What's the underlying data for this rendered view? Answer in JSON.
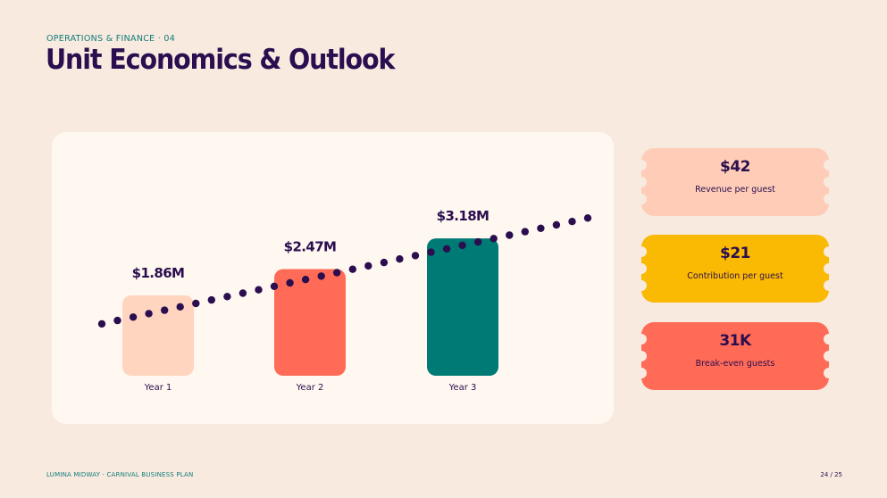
{
  "slide": {
    "eyebrow": "OPERATIONS & FINANCE · 04",
    "title": "Unit Economics & Outlook"
  },
  "colors": {
    "background": "#F8EADF",
    "panel": "#FFF8F0",
    "navy": "#2A0E4F",
    "teal": "#0F7C79",
    "peach": "#FFD5BF",
    "coral": "#FF6B57",
    "yellow": "#FAB902",
    "deep_teal": "#007A75"
  },
  "chart_data": {
    "type": "bar",
    "categories": [
      "Year 1",
      "Year 2",
      "Year 3"
    ],
    "values": [
      1.86,
      2.47,
      3.18
    ],
    "value_labels": [
      "$1.86M",
      "$2.47M",
      "$3.18M"
    ],
    "bar_colors": [
      "#FFD5BF",
      "#FF6B57",
      "#007A75"
    ],
    "ylim": [
      0,
      3.5
    ],
    "trend": {
      "style": "dotted",
      "color": "#2A0E4F",
      "start_value": 1.2,
      "end_value": 3.65
    },
    "title": "",
    "xlabel": "",
    "ylabel": "",
    "grid": false
  },
  "kpis": [
    {
      "value": "$42",
      "label": "Revenue per guest",
      "color": "#FFCDB7"
    },
    {
      "value": "$21",
      "label": "Contribution per guest",
      "color": "#FAB902"
    },
    {
      "value": "31K",
      "label": "Break-even guests",
      "color": "#FF6B57"
    }
  ],
  "footer": {
    "left": "LUMINA MIDWAY · CARNIVAL BUSINESS PLAN",
    "right": "24 / 25"
  }
}
